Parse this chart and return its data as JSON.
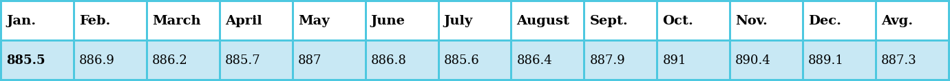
{
  "headers": [
    "Jan.",
    "Feb.",
    "March",
    "April",
    "May",
    "June",
    "July",
    "August",
    "Sept.",
    "Oct.",
    "Nov.",
    "Dec.",
    "Avg."
  ],
  "values": [
    "885.5",
    "886.9",
    "886.2",
    "885.7",
    "887",
    "886.8",
    "885.6",
    "886.4",
    "887.9",
    "891",
    "890.4",
    "889.1",
    "887.3"
  ],
  "header_bg": "#ffffff",
  "value_bg": "#c8e8f4",
  "border_color": "#4dc8e0",
  "text_color": "#000000",
  "header_fontsize": 14,
  "value_fontsize": 13,
  "fig_width": 13.8,
  "fig_height": 1.19,
  "border_width": 3
}
